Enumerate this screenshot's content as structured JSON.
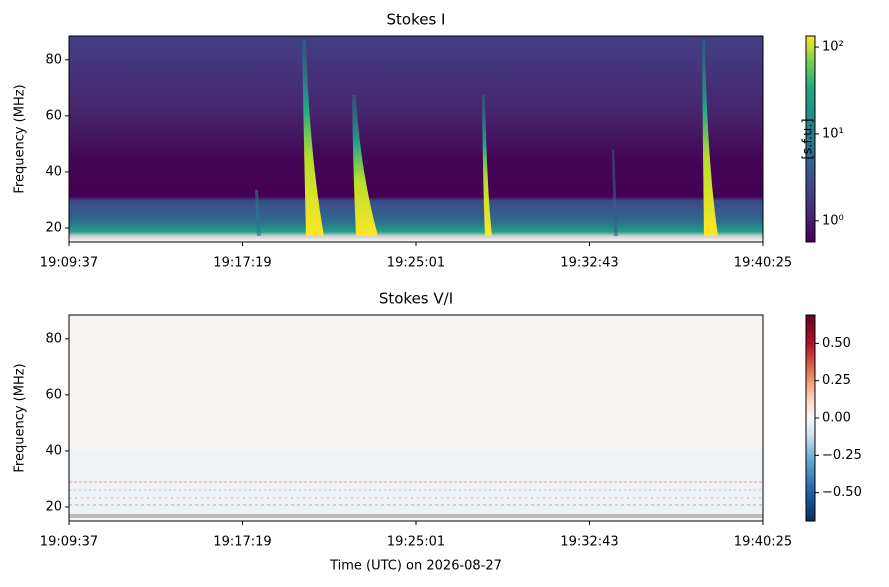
{
  "chart_data": [
    {
      "type": "heatmap",
      "title": "Stokes I",
      "ylabel": "Frequency (MHz)",
      "xticks": [
        "19:09:37",
        "19:17:19",
        "19:25:01",
        "19:32:43",
        "19:40:25"
      ],
      "ylim": [
        15,
        88.5
      ],
      "yticks": [
        20,
        40,
        60,
        80
      ],
      "colorbar": {
        "label": "[s.f.u.]",
        "scale": "log",
        "colormap": "viridis",
        "lim": [
          0.57,
          134
        ],
        "ticks": [
          {
            "value": 1,
            "label": "10⁰"
          },
          {
            "value": 10,
            "label": "10¹"
          },
          {
            "value": 100,
            "label": "10²"
          }
        ]
      }
    },
    {
      "type": "heatmap",
      "title": "Stokes V/I",
      "ylabel": "Frequency (MHz)",
      "xlabel": "Time (UTC) on 2026-08-27",
      "xticks": [
        "19:09:37",
        "19:17:19",
        "19:25:01",
        "19:32:43",
        "19:40:25"
      ],
      "ylim": [
        15,
        88.5
      ],
      "yticks": [
        20,
        40,
        60,
        80
      ],
      "colorbar": {
        "scale": "linear",
        "colormap": "RdBu_r",
        "lim": [
          -0.69,
          0.69
        ],
        "ticks": [
          {
            "value": 0.5,
            "label": "0.50"
          },
          {
            "value": 0.25,
            "label": "0.25"
          },
          {
            "value": 0,
            "label": "0.00"
          },
          {
            "value": -0.25,
            "label": "−0.25"
          },
          {
            "value": -0.5,
            "label": "−0.50"
          }
        ]
      }
    }
  ]
}
